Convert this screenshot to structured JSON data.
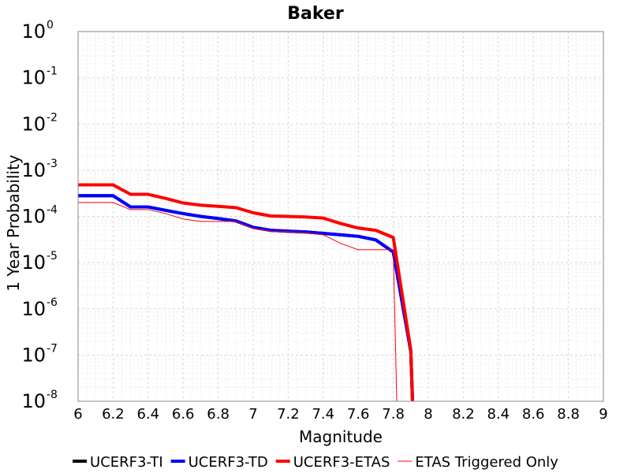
{
  "chart_data": {
    "type": "line",
    "title": "Baker",
    "xlabel": "Magnitude",
    "ylabel": "1 Year Probability",
    "xlim": [
      6,
      9
    ],
    "ylim": [
      1e-08,
      1
    ],
    "yscale": "log",
    "grid": true,
    "legend_position": "bottom",
    "x_ticks": [
      "6",
      "6.2",
      "6.4",
      "6.6",
      "6.8",
      "7",
      "7.2",
      "7.4",
      "7.6",
      "7.8",
      "8",
      "8.2",
      "8.4",
      "8.6",
      "8.8",
      "9"
    ],
    "y_ticks": [
      {
        "base": "10",
        "exp": "0"
      },
      {
        "base": "10",
        "exp": "-1"
      },
      {
        "base": "10",
        "exp": "-2"
      },
      {
        "base": "10",
        "exp": "-3"
      },
      {
        "base": "10",
        "exp": "-4"
      },
      {
        "base": "10",
        "exp": "-5"
      },
      {
        "base": "10",
        "exp": "-6"
      },
      {
        "base": "10",
        "exp": "-7"
      },
      {
        "base": "10",
        "exp": "-8"
      }
    ],
    "series": [
      {
        "name": "UCERF3-TI",
        "color": "#000000",
        "width": 4,
        "x": [
          6.0,
          6.2,
          6.3,
          6.4,
          6.5,
          6.6,
          6.7,
          6.8,
          6.9,
          7.0,
          7.1,
          7.2,
          7.3,
          7.4,
          7.5,
          7.6,
          7.7,
          7.8,
          7.9,
          7.91
        ],
        "y": [
          0.00028,
          0.00028,
          0.00016,
          0.00016,
          0.000135,
          0.000115,
          0.0001,
          9e-05,
          8e-05,
          5.8e-05,
          5e-05,
          4.8e-05,
          4.6e-05,
          4.3e-05,
          4e-05,
          3.7e-05,
          3.1e-05,
          1.7e-05,
          1.2e-07,
          1e-08
        ]
      },
      {
        "name": "UCERF3-TD",
        "color": "#0000ff",
        "width": 4,
        "x": [
          6.0,
          6.2,
          6.3,
          6.4,
          6.5,
          6.6,
          6.7,
          6.8,
          6.9,
          7.0,
          7.1,
          7.2,
          7.3,
          7.4,
          7.5,
          7.6,
          7.7,
          7.8,
          7.9,
          7.91
        ],
        "y": [
          0.00028,
          0.00028,
          0.00016,
          0.00016,
          0.000135,
          0.000115,
          0.0001,
          9e-05,
          8e-05,
          5.8e-05,
          5e-05,
          4.8e-05,
          4.6e-05,
          4.3e-05,
          4e-05,
          3.7e-05,
          3.1e-05,
          1.7e-05,
          1.2e-07,
          1e-08
        ]
      },
      {
        "name": "UCERF3-ETAS",
        "color": "#ff0000",
        "width": 4,
        "x": [
          6.0,
          6.2,
          6.3,
          6.4,
          6.5,
          6.6,
          6.7,
          6.8,
          6.9,
          7.0,
          7.1,
          7.2,
          7.3,
          7.4,
          7.5,
          7.6,
          7.7,
          7.8,
          7.9,
          7.91
        ],
        "y": [
          0.00048,
          0.00048,
          0.0003,
          0.0003,
          0.000245,
          0.000195,
          0.000175,
          0.000165,
          0.000155,
          0.00012,
          0.000102,
          0.0001,
          9.7e-05,
          9.2e-05,
          7e-05,
          5.6e-05,
          5e-05,
          3.5e-05,
          1.3e-07,
          1e-08
        ]
      },
      {
        "name": "ETAS Triggered Only",
        "color": "#ff0000",
        "width": 1,
        "x": [
          6.0,
          6.2,
          6.3,
          6.4,
          6.5,
          6.6,
          6.7,
          6.8,
          6.9,
          7.0,
          7.1,
          7.2,
          7.3,
          7.4,
          7.5,
          7.6,
          7.7,
          7.8,
          7.82
        ],
        "y": [
          0.0002,
          0.0002,
          0.00014,
          0.00014,
          0.000115,
          8.8e-05,
          7.8e-05,
          7.8e-05,
          7.8e-05,
          5.5e-05,
          4.7e-05,
          4.7e-05,
          4.4e-05,
          4e-05,
          2.6e-05,
          1.9e-05,
          1.9e-05,
          1.9e-05,
          1e-08
        ]
      }
    ]
  }
}
